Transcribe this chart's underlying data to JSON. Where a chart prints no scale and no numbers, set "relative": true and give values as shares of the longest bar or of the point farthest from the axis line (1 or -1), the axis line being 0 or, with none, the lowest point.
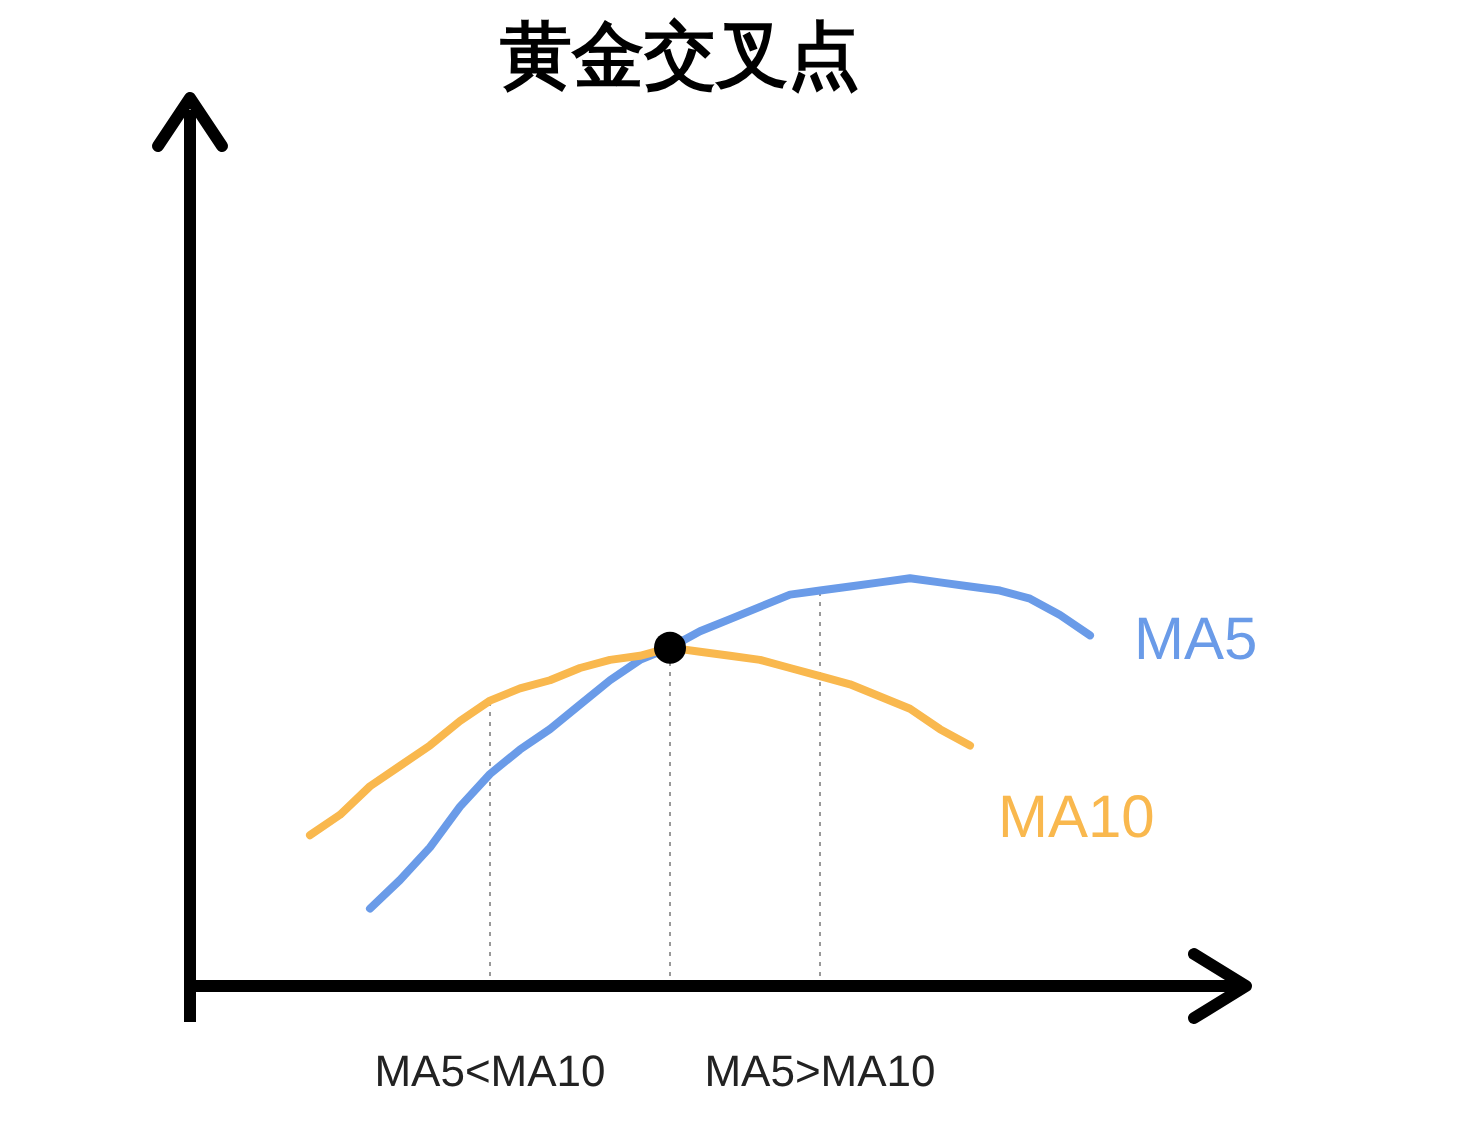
{
  "chart_data": {
    "type": "line",
    "title": "黄金交叉点",
    "relative": true,
    "legend": false,
    "grid": "x",
    "categories": [
      null,
      null,
      null,
      null,
      null,
      null,
      null,
      "MA5<MA10",
      null,
      null,
      null,
      null,
      null,
      null,
      null,
      null,
      null,
      null,
      "MA5>MA10",
      null,
      null,
      null,
      null,
      null,
      null,
      null,
      null,
      null,
      null
    ],
    "series": [
      {
        "name": "MA5",
        "color": "#6a9be8",
        "values": [
          null,
          null,
          null,
          0.19,
          0.26,
          0.34,
          0.44,
          0.52,
          0.58,
          0.63,
          0.69,
          0.75,
          0.8,
          0.83,
          0.87,
          0.9,
          0.93,
          0.96,
          0.97,
          0.98,
          0.99,
          1.0,
          0.99,
          0.98,
          0.97,
          0.95,
          0.91,
          0.86,
          null
        ]
      },
      {
        "name": "MA10",
        "color": "#f9b84e",
        "values": [
          null,
          0.37,
          0.42,
          0.49,
          0.54,
          0.59,
          0.65,
          0.7,
          0.73,
          0.75,
          0.78,
          0.8,
          0.81,
          0.83,
          0.82,
          0.81,
          0.8,
          0.78,
          0.76,
          0.74,
          0.71,
          0.68,
          0.63,
          0.59,
          null,
          null,
          null,
          null,
          null
        ]
      },
      {
        "type": "scatter",
        "color": "#000000",
        "marker": "circle",
        "values": [
          null,
          null,
          null,
          null,
          null,
          null,
          null,
          null,
          null,
          null,
          null,
          null,
          null,
          0.83,
          null,
          null,
          null,
          null,
          null,
          null,
          null,
          null,
          null,
          null,
          null,
          null,
          null,
          null,
          null
        ]
      }
    ]
  }
}
